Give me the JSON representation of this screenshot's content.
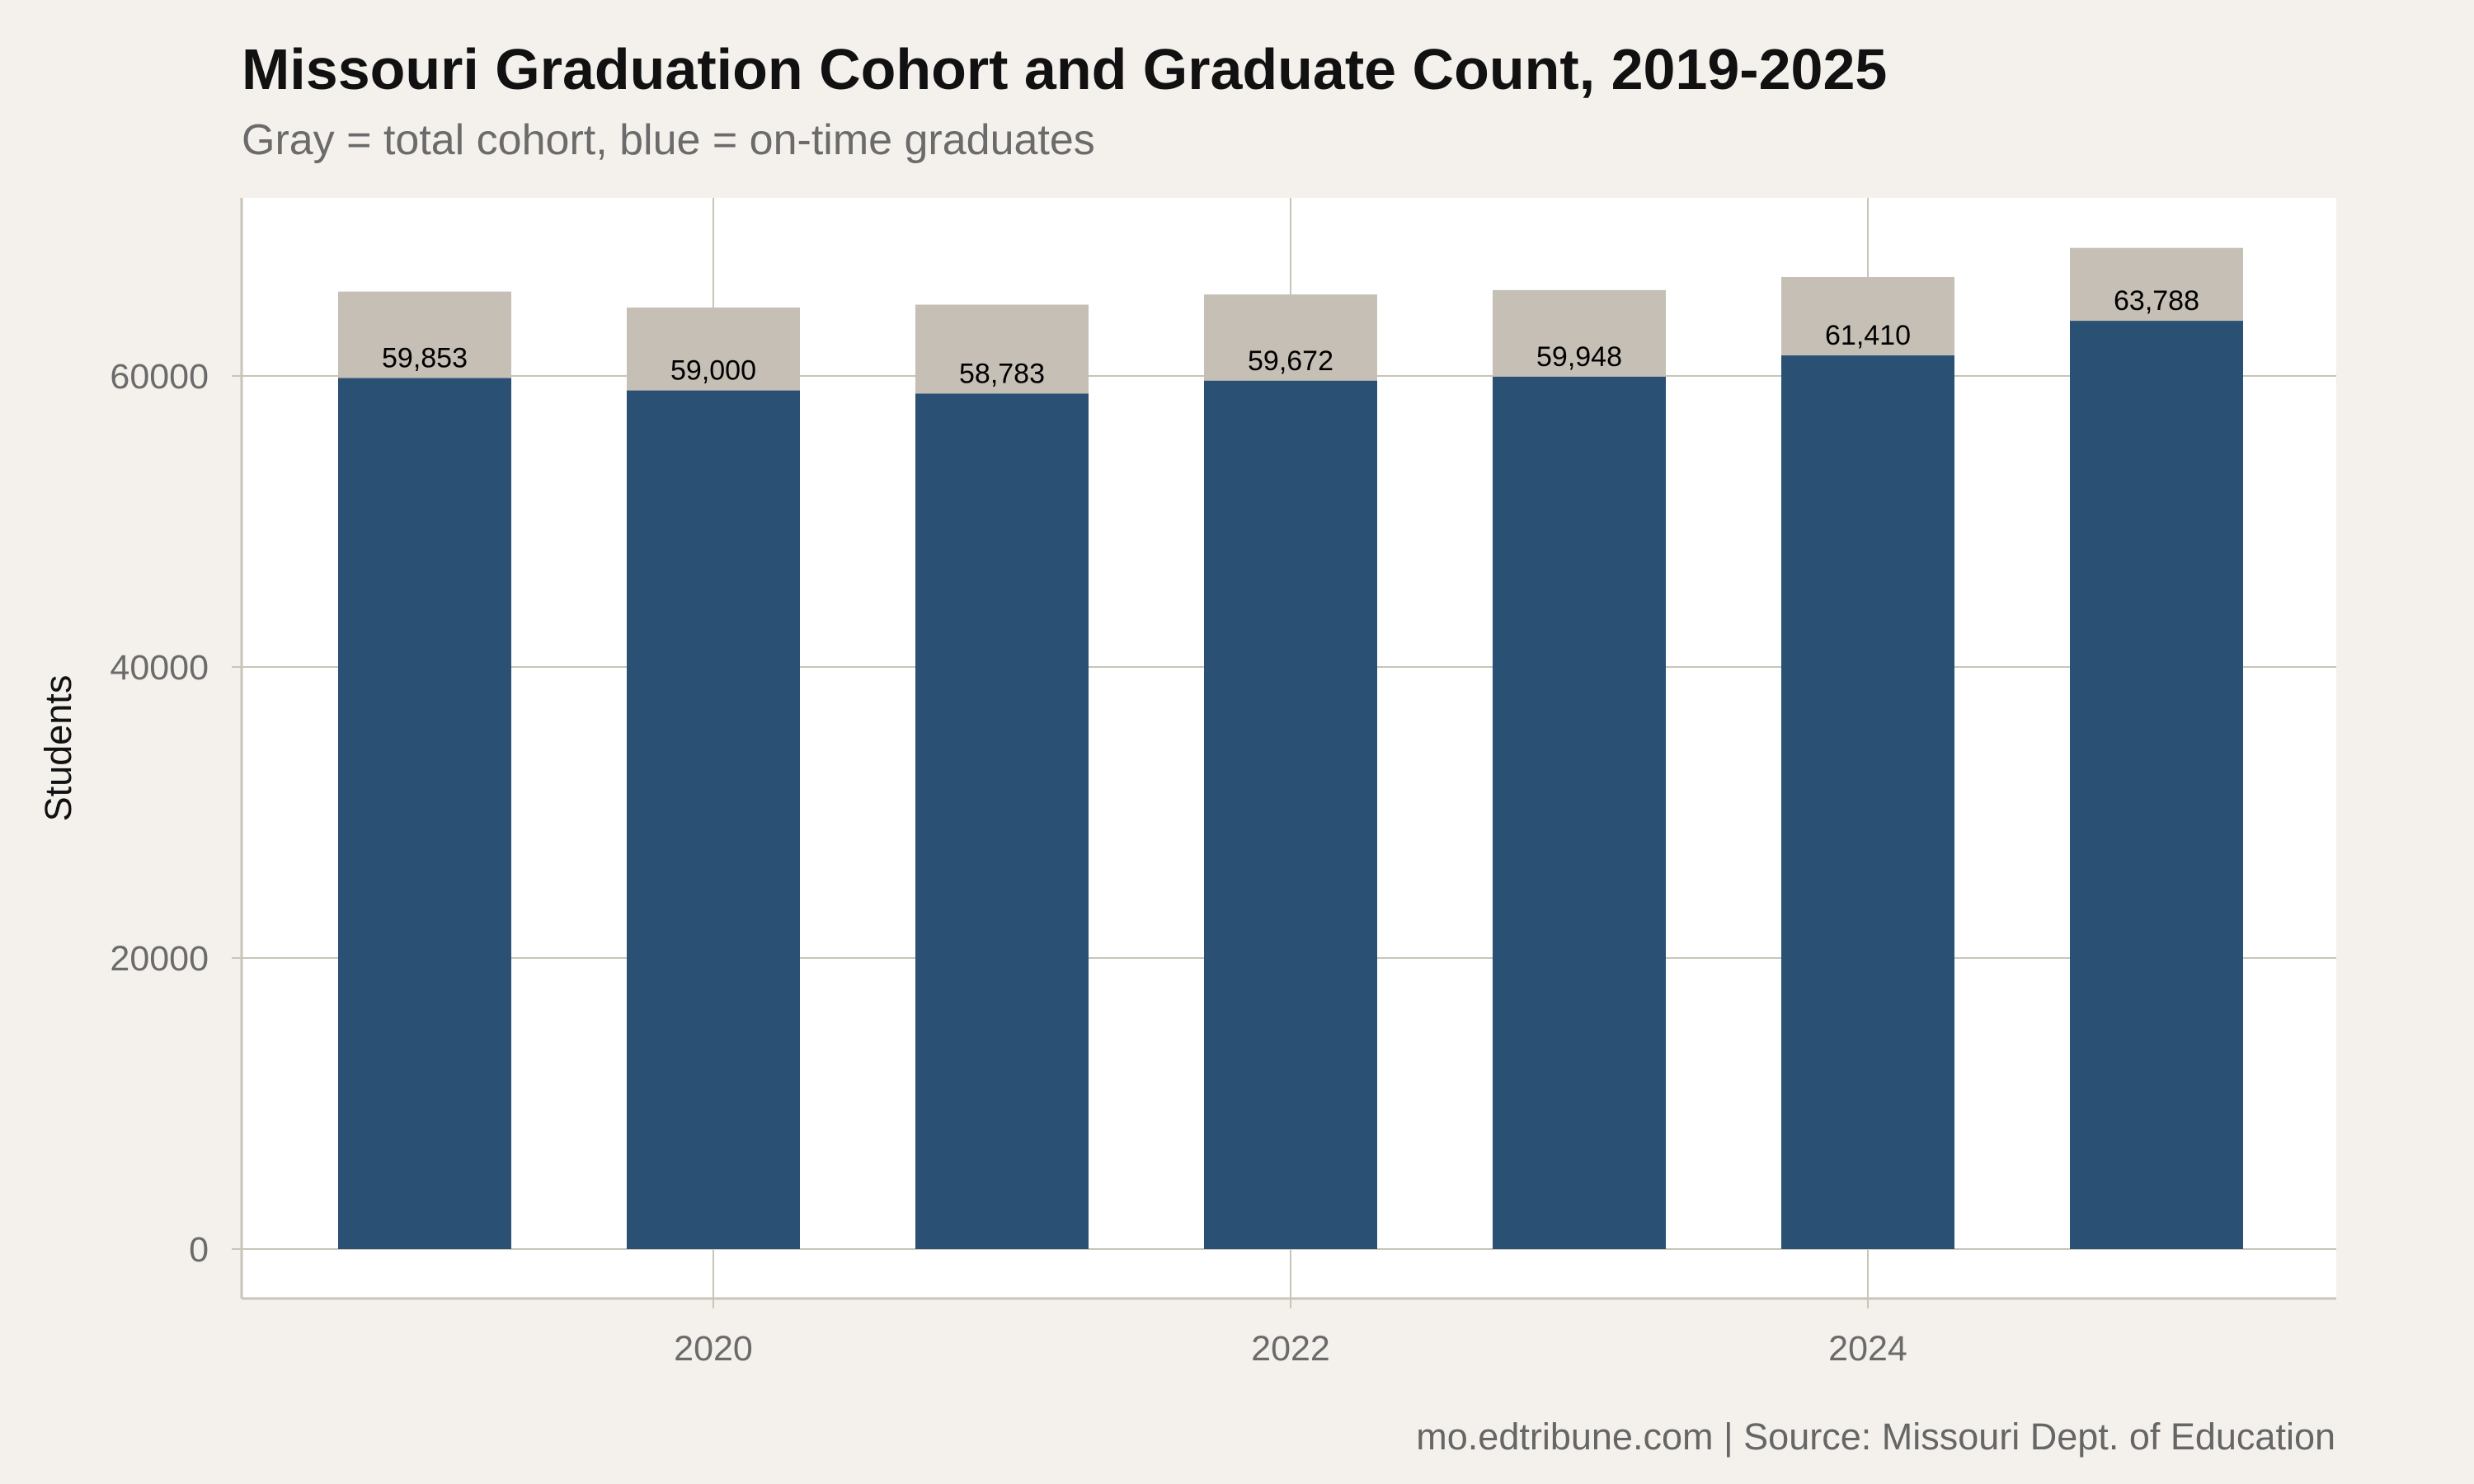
{
  "chart_data": {
    "type": "bar",
    "title": "Missouri Graduation Cohort and Graduate Count, 2019-2025",
    "subtitle": "Gray = total cohort, blue = on-time graduates",
    "caption": "mo.edtribune.com | Source: Missouri Dept. of Education",
    "xlabel": "",
    "ylabel": "Students",
    "x": [
      2019,
      2020,
      2021,
      2022,
      2023,
      2024,
      2025
    ],
    "series": [
      {
        "name": "total cohort",
        "color": "#c5bfb5",
        "values": [
          65800,
          64700,
          64900,
          65600,
          65900,
          66800,
          68800
        ]
      },
      {
        "name": "on-time graduates",
        "color": "#2a5074",
        "values": [
          59853,
          59000,
          58783,
          59672,
          59948,
          61410,
          63788
        ]
      }
    ],
    "data_labels": [
      "59,853",
      "59,000",
      "58,783",
      "59,672",
      "59,948",
      "61,410",
      "63,788"
    ],
    "x_ticks": [
      2020,
      2022,
      2024
    ],
    "x_tick_labels": [
      "2020",
      "2022",
      "2024"
    ],
    "y_ticks": [
      0,
      20000,
      40000,
      60000
    ],
    "y_tick_labels": [
      "0",
      "20000",
      "40000",
      "60000"
    ],
    "ylim": [
      0,
      69000
    ],
    "xlim": [
      2018.37,
      2025.63
    ],
    "grid": true,
    "legend": "none",
    "colors": {
      "background": "#f4f1ec",
      "panel": "#ffffff",
      "grid": "#c8c4b8",
      "cohort": "#c5bfb5",
      "graduates": "#2a5074"
    }
  }
}
